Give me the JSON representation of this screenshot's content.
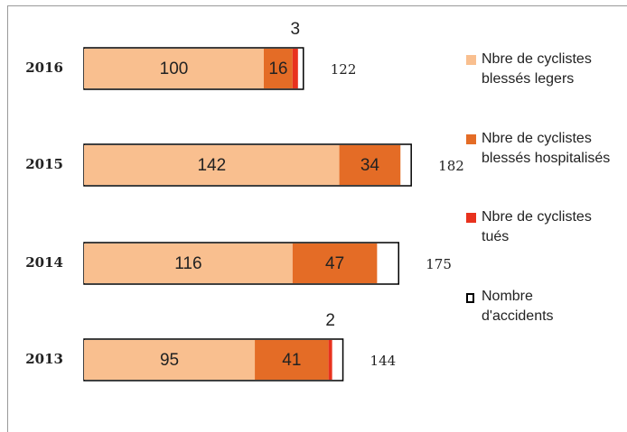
{
  "chart_data": {
    "type": "bar",
    "orientation": "horizontal",
    "stacked": true,
    "categories": [
      "2016",
      "2015",
      "2014",
      "2013"
    ],
    "series": [
      {
        "name": "Nbre de cyclistes blessés legers",
        "color": "#f9bf8f",
        "values": [
          100,
          142,
          116,
          95
        ]
      },
      {
        "name": "Nbre de cyclistes blessés hospitalisés",
        "color": "#e46c26",
        "values": [
          16,
          34,
          47,
          41
        ]
      },
      {
        "name": "Nbre de cyclistes tués",
        "color": "#e8321e",
        "values": [
          3,
          0,
          0,
          2
        ]
      },
      {
        "name": "Nombre d'accidents",
        "color": "#ffffff",
        "values": [
          122,
          182,
          175,
          144
        ]
      }
    ]
  }
}
